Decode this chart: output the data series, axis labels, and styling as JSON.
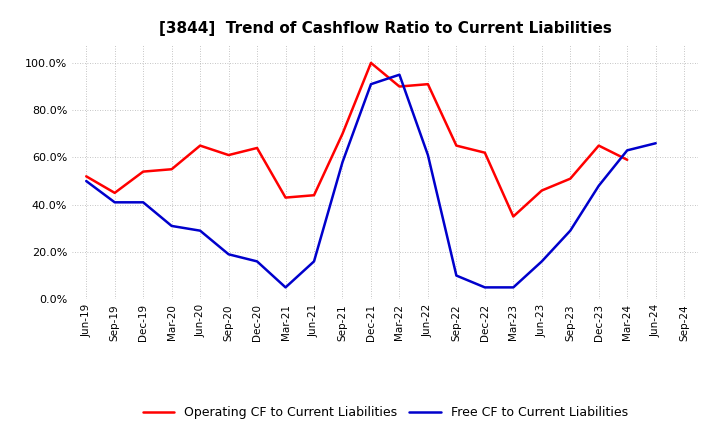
{
  "title": "[3844]  Trend of Cashflow Ratio to Current Liabilities",
  "x_labels": [
    "Jun-19",
    "Sep-19",
    "Dec-19",
    "Mar-20",
    "Jun-20",
    "Sep-20",
    "Dec-20",
    "Mar-21",
    "Jun-21",
    "Sep-21",
    "Dec-21",
    "Mar-22",
    "Jun-22",
    "Sep-22",
    "Dec-22",
    "Mar-23",
    "Jun-23",
    "Sep-23",
    "Dec-23",
    "Mar-24",
    "Jun-24",
    "Sep-24"
  ],
  "operating_cf": [
    0.52,
    0.45,
    0.54,
    0.55,
    0.65,
    0.61,
    0.64,
    0.43,
    0.44,
    0.7,
    1.0,
    0.9,
    0.91,
    0.65,
    0.62,
    0.35,
    0.46,
    0.51,
    0.65,
    0.59,
    null,
    null
  ],
  "free_cf": [
    0.5,
    0.41,
    0.41,
    0.31,
    0.29,
    0.19,
    0.16,
    0.05,
    0.16,
    0.58,
    0.91,
    0.95,
    0.61,
    0.1,
    0.05,
    0.05,
    0.16,
    0.29,
    0.48,
    0.63,
    0.66,
    null
  ],
  "operating_color": "#FF0000",
  "free_color": "#0000CC",
  "ylabel_ticks": [
    0.0,
    0.2,
    0.4,
    0.6,
    0.8,
    1.0
  ],
  "ylim": [
    0.0,
    1.08
  ],
  "background_color": "#FFFFFF",
  "grid_color": "#AAAAAA",
  "legend_op": "Operating CF to Current Liabilities",
  "legend_free": "Free CF to Current Liabilities"
}
